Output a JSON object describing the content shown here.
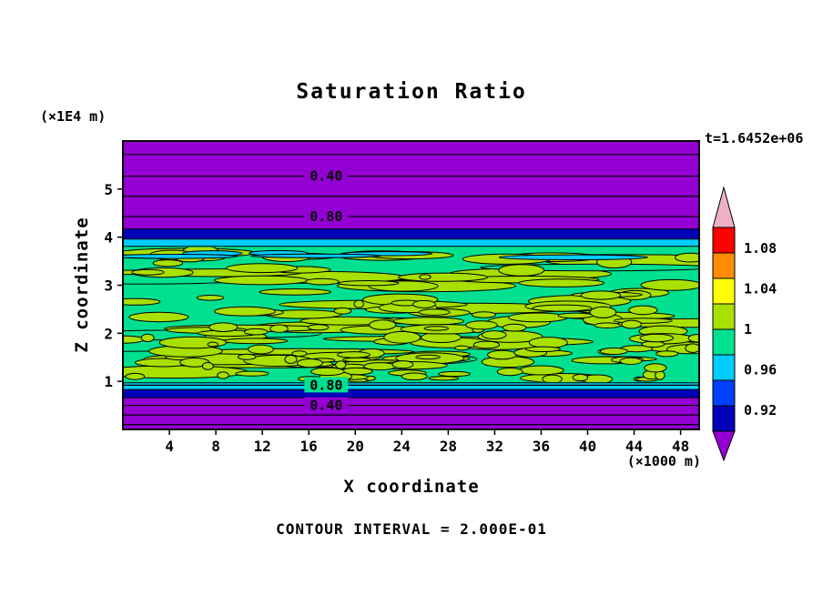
{
  "chart_data": {
    "type": "heatmap",
    "title": "Saturation Ratio",
    "xlabel": "X coordinate",
    "ylabel": "Z coordinate",
    "x_unit_label": "(×1000 m)",
    "y_unit_label": "(×1E4 m)",
    "time_label": "t=1.6452e+06",
    "contour_note": "CONTOUR INTERVAL = 2.000E-01",
    "contour_interval": 0.2,
    "x_range": [
      0,
      49.6
    ],
    "y_range": [
      0,
      6
    ],
    "x_ticks": [
      4,
      8,
      12,
      16,
      20,
      24,
      28,
      32,
      36,
      40,
      44,
      48
    ],
    "y_ticks": [
      1,
      2,
      3,
      4,
      5
    ],
    "grid": false,
    "legend_position": "right-colorbar",
    "contour_label_x": 17.5,
    "layers": [
      {
        "name": "purple-top",
        "z_from": 4.17,
        "z_to": 6.0,
        "color": "#9400d3"
      },
      {
        "name": "navy-top",
        "z_from": 3.96,
        "z_to": 4.17,
        "color": "#0000b8"
      },
      {
        "name": "cyan-top",
        "z_from": 3.81,
        "z_to": 3.96,
        "color": "#00ccff"
      },
      {
        "name": "green-mid",
        "z_from": 0.97,
        "z_to": 3.81,
        "color": "#00e090"
      },
      {
        "name": "cyan-bottom",
        "z_from": 0.83,
        "z_to": 0.97,
        "color": "#00ccff"
      },
      {
        "name": "navy-bottom",
        "z_from": 0.66,
        "z_to": 0.83,
        "color": "#0000b8"
      },
      {
        "name": "purple-bottom",
        "z_from": 0.0,
        "z_to": 0.66,
        "color": "#9400d3"
      }
    ],
    "line_contours": [
      {
        "z": 5.72
      },
      {
        "z": 5.27,
        "label": "0.40",
        "label_bg": "#9400d3"
      },
      {
        "z": 4.85
      },
      {
        "z": 4.43,
        "label": "0.80",
        "label_bg": "#9400d3"
      },
      {
        "z": 0.92,
        "label": "0.80",
        "label_bg": "#00e090"
      },
      {
        "z": 0.5,
        "label": "0.40",
        "label_bg": "#9400d3"
      },
      {
        "z": 0.3
      },
      {
        "z": 0.1
      }
    ],
    "texture": {
      "seed": 42,
      "z_from": 0.97,
      "z_to": 3.81,
      "background": "#00e090",
      "blob_color": "#a8e000",
      "streak_color": "#00ccff",
      "large_blobs": 30,
      "medium_blobs": 90,
      "small_blobs": 75,
      "cyan_streaks": 6
    },
    "colorbar": {
      "tick_labels": [
        "1.08",
        "1.04",
        "1",
        "0.96",
        "0.92"
      ],
      "segments": [
        {
          "color": "#f0b0c4",
          "shape": "arrow-up"
        },
        {
          "color": "#ff0000"
        },
        {
          "color": "#ff8c00"
        },
        {
          "color": "#ffff00"
        },
        {
          "color": "#a8e000"
        },
        {
          "color": "#00e090"
        },
        {
          "color": "#00ccff"
        },
        {
          "color": "#0040ff"
        },
        {
          "color": "#0000b8"
        },
        {
          "color": "#9400d3",
          "shape": "arrow-down"
        }
      ]
    }
  }
}
